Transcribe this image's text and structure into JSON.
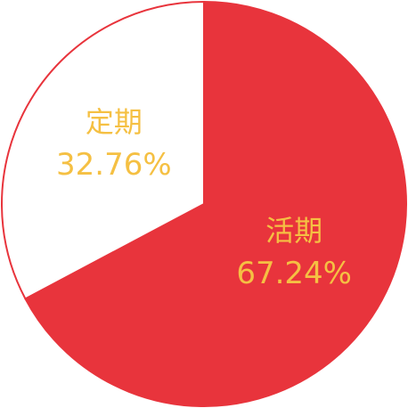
{
  "chart_data": {
    "type": "pie",
    "start_angle_deg": 0,
    "direction": "clockwise",
    "slices": [
      {
        "label": "活期",
        "value": 67.24,
        "value_text": "67.24%",
        "fill": "#e8343c",
        "stroke": "#e8343c",
        "text_color": "#f5c043"
      },
      {
        "label": "定期",
        "value": 32.76,
        "value_text": "32.76%",
        "fill": "#ffffff",
        "stroke": "#e8343c",
        "text_color": "#f5c043"
      }
    ]
  }
}
